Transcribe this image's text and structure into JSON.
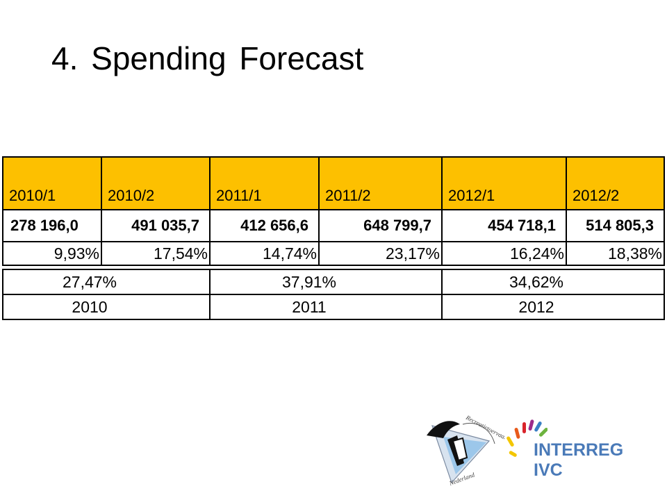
{
  "slide": {
    "title": "4. Spending Forecast"
  },
  "table": {
    "periods": [
      "2010/1",
      "2010/2",
      "2011/1",
      "2011/2",
      "2012/1",
      "2012/2"
    ],
    "amounts": [
      "278 196,0",
      "491 035,7",
      "412 656,6",
      "648 799,7",
      "454 718,1",
      "514 805,3"
    ],
    "period_percentages": [
      "9,93%",
      "17,54%",
      "14,74%",
      "23,17%",
      "16,24%",
      "18,38%"
    ],
    "year_percentages": [
      "27,47%",
      "37,91%",
      "34,62%"
    ],
    "years": [
      "2010",
      "2011",
      "2012"
    ],
    "header_color": "#fdc000"
  },
  "logos": {
    "left": {
      "arc_text": "Recreatietoervaart",
      "bottom_text": "Nederland"
    },
    "right": {
      "name": "INTERREG IVC",
      "text_color": "#4a7ab8"
    }
  }
}
